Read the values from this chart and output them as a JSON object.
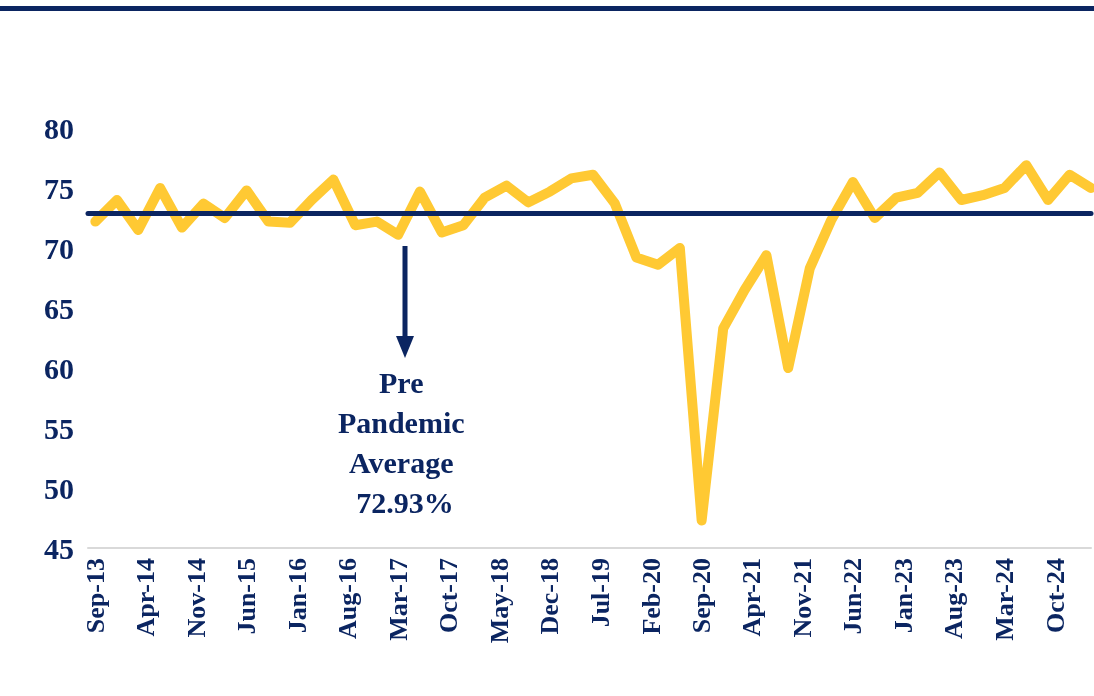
{
  "chart_data": {
    "type": "line",
    "x": [
      "2013-09",
      "2013-12",
      "2014-03",
      "2014-06",
      "2014-09",
      "2014-12",
      "2015-03",
      "2015-06",
      "2015-09",
      "2015-12",
      "2016-03",
      "2016-06",
      "2016-09",
      "2016-12",
      "2017-03",
      "2017-06",
      "2017-09",
      "2017-12",
      "2018-03",
      "2018-06",
      "2018-09",
      "2018-12",
      "2019-03",
      "2019-06",
      "2019-09",
      "2019-12",
      "2020-03",
      "2020-06",
      "2020-09",
      "2020-12",
      "2021-03",
      "2021-06",
      "2021-09",
      "2021-12",
      "2022-03",
      "2022-06",
      "2022-09",
      "2022-12",
      "2023-03",
      "2023-06",
      "2023-09",
      "2023-12",
      "2024-03",
      "2024-06",
      "2024-09",
      "2024-12",
      "2025-03"
    ],
    "series": [
      {
        "color": "#ffc933",
        "values": [
          72.2,
          74.0,
          71.5,
          75.0,
          71.7,
          73.7,
          72.5,
          74.8,
          72.2,
          72.1,
          74.0,
          75.7,
          71.9,
          72.2,
          71.1,
          74.7,
          71.3,
          71.9,
          74.2,
          75.2,
          73.8,
          74.7,
          75.8,
          76.1,
          73.7,
          69.2,
          68.6,
          70.0,
          47.3,
          63.3,
          66.5,
          69.4,
          60.0,
          68.3,
          72.3,
          75.5,
          72.5,
          74.2,
          74.6,
          76.3,
          74.0,
          74.4,
          75.0,
          76.9,
          74.0,
          76.1,
          75.0
        ]
      }
    ],
    "xlim": [
      "2013-08",
      "2025-03"
    ],
    "xticks": [
      {
        "value": "2013-09",
        "label": "Sep-13"
      },
      {
        "value": "2014-04",
        "label": "Apr-14"
      },
      {
        "value": "2014-11",
        "label": "Nov-14"
      },
      {
        "value": "2015-06",
        "label": "Jun-15"
      },
      {
        "value": "2016-01",
        "label": "Jan-16"
      },
      {
        "value": "2016-08",
        "label": "Aug-16"
      },
      {
        "value": "2017-03",
        "label": "Mar-17"
      },
      {
        "value": "2017-10",
        "label": "Oct-17"
      },
      {
        "value": "2018-05",
        "label": "May-18"
      },
      {
        "value": "2018-12",
        "label": "Dec-18"
      },
      {
        "value": "2019-07",
        "label": "Jul-19"
      },
      {
        "value": "2020-02",
        "label": "Feb-20"
      },
      {
        "value": "2020-09",
        "label": "Sep-20"
      },
      {
        "value": "2021-04",
        "label": "Apr-21"
      },
      {
        "value": "2021-11",
        "label": "Nov-21"
      },
      {
        "value": "2022-06",
        "label": "Jun-22"
      },
      {
        "value": "2023-01",
        "label": "Jan-23"
      },
      {
        "value": "2023-08",
        "label": "Aug-23"
      },
      {
        "value": "2024-03",
        "label": "Mar-24"
      },
      {
        "value": "2024-10",
        "label": "Oct-24"
      }
    ],
    "ylim": [
      45,
      80
    ],
    "yticks": [
      45,
      50,
      55,
      60,
      65,
      70,
      75,
      80
    ],
    "ref_lines": [
      {
        "axis": "y",
        "value": 72.93,
        "color": "#0b2561"
      }
    ],
    "annotations": [
      "Pre Pandemic Average 72.93%"
    ],
    "grid": false
  }
}
